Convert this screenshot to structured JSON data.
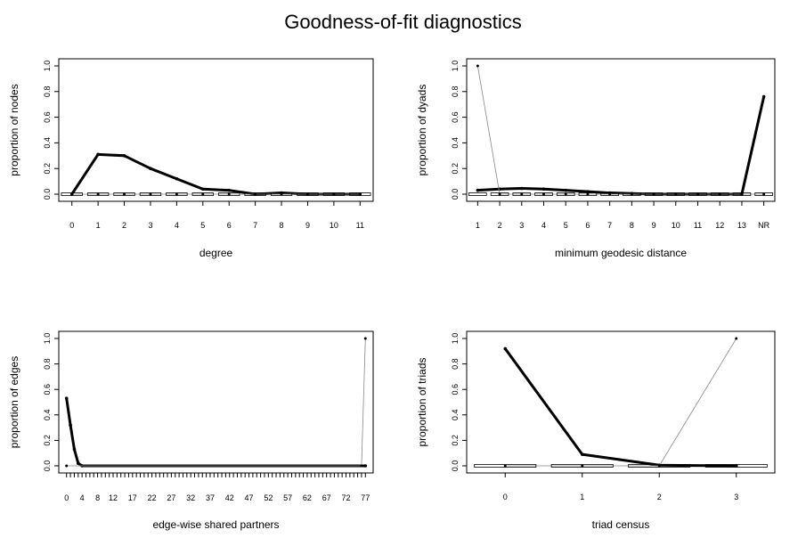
{
  "title": "Goodness-of-fit diagnostics",
  "chart_data": [
    {
      "type": "line",
      "xlabel": "degree",
      "ylabel": "proportion of nodes",
      "ylim": [
        0,
        1
      ],
      "y_ticks": [
        "0.0",
        "0.2",
        "0.4",
        "0.6",
        "0.8",
        "1.0"
      ],
      "categories": [
        "0",
        "1",
        "2",
        "3",
        "4",
        "5",
        "6",
        "7",
        "8",
        "9",
        "10",
        "11"
      ],
      "x_tick_labels": [
        "0",
        "1",
        "2",
        "3",
        "4",
        "5",
        "6",
        "7",
        "8",
        "9",
        "10",
        "11"
      ],
      "series": [
        {
          "values": [
            0.0,
            0.31,
            0.3,
            0.2,
            0.12,
            0.04,
            0.03,
            0.0,
            0.01,
            0.0,
            0.0,
            0.0
          ]
        },
        {
          "values": [
            0.0,
            0.0,
            0.0,
            0.0,
            0.0,
            0.0,
            0.0,
            0.0,
            0.0,
            0.0,
            0.0,
            0.0
          ]
        }
      ]
    },
    {
      "type": "line",
      "xlabel": "minimum geodesic distance",
      "ylabel": "proportion of dyads",
      "ylim": [
        0,
        1
      ],
      "y_ticks": [
        "0.0",
        "0.2",
        "0.4",
        "0.6",
        "0.8",
        "1.0"
      ],
      "categories": [
        "1",
        "2",
        "3",
        "4",
        "5",
        "6",
        "7",
        "8",
        "9",
        "10",
        "11",
        "12",
        "13",
        "NR"
      ],
      "x_tick_labels": [
        "1",
        "2",
        "3",
        "4",
        "5",
        "6",
        "7",
        "8",
        "9",
        "10",
        "11",
        "12",
        "13",
        "NR"
      ],
      "series": [
        {
          "values": [
            0.03,
            0.04,
            0.045,
            0.04,
            0.03,
            0.02,
            0.01,
            0.005,
            0.0,
            0.0,
            0.0,
            0.0,
            0.0,
            0.76
          ]
        },
        {
          "values": [
            1.0,
            0.0,
            0.0,
            0.0,
            0.0,
            0.0,
            0.0,
            0.0,
            0.0,
            0.0,
            0.0,
            0.0,
            0.0,
            0.0
          ]
        }
      ]
    },
    {
      "type": "line",
      "xlabel": "edge-wise shared partners",
      "ylabel": "proportion of edges",
      "ylim": [
        0,
        1
      ],
      "y_ticks": [
        "0.0",
        "0.2",
        "0.4",
        "0.6",
        "0.8",
        "1.0"
      ],
      "x_range": [
        0,
        77
      ],
      "x_tick_labels": [
        "0",
        "4",
        "8",
        "12",
        "17",
        "22",
        "27",
        "32",
        "37",
        "42",
        "47",
        "52",
        "57",
        "62",
        "67",
        "72",
        "77"
      ],
      "series": [
        {
          "x": [
            0,
            1,
            2,
            3,
            4,
            77
          ],
          "values": [
            0.53,
            0.32,
            0.13,
            0.02,
            0.0,
            0.0
          ]
        },
        {
          "x": [
            0,
            76,
            77
          ],
          "values": [
            0.0,
            0.0,
            1.0
          ]
        }
      ]
    },
    {
      "type": "line",
      "xlabel": "triad census",
      "ylabel": "proportion of triads",
      "ylim": [
        0,
        1
      ],
      "y_ticks": [
        "0.0",
        "0.2",
        "0.4",
        "0.6",
        "0.8",
        "1.0"
      ],
      "categories": [
        "0",
        "1",
        "2",
        "3"
      ],
      "x_tick_labels": [
        "0",
        "1",
        "2",
        "3"
      ],
      "series": [
        {
          "values": [
            0.92,
            0.09,
            0.005,
            0.0
          ]
        },
        {
          "values": [
            0.0,
            0.0,
            0.0,
            1.0
          ]
        }
      ]
    }
  ]
}
